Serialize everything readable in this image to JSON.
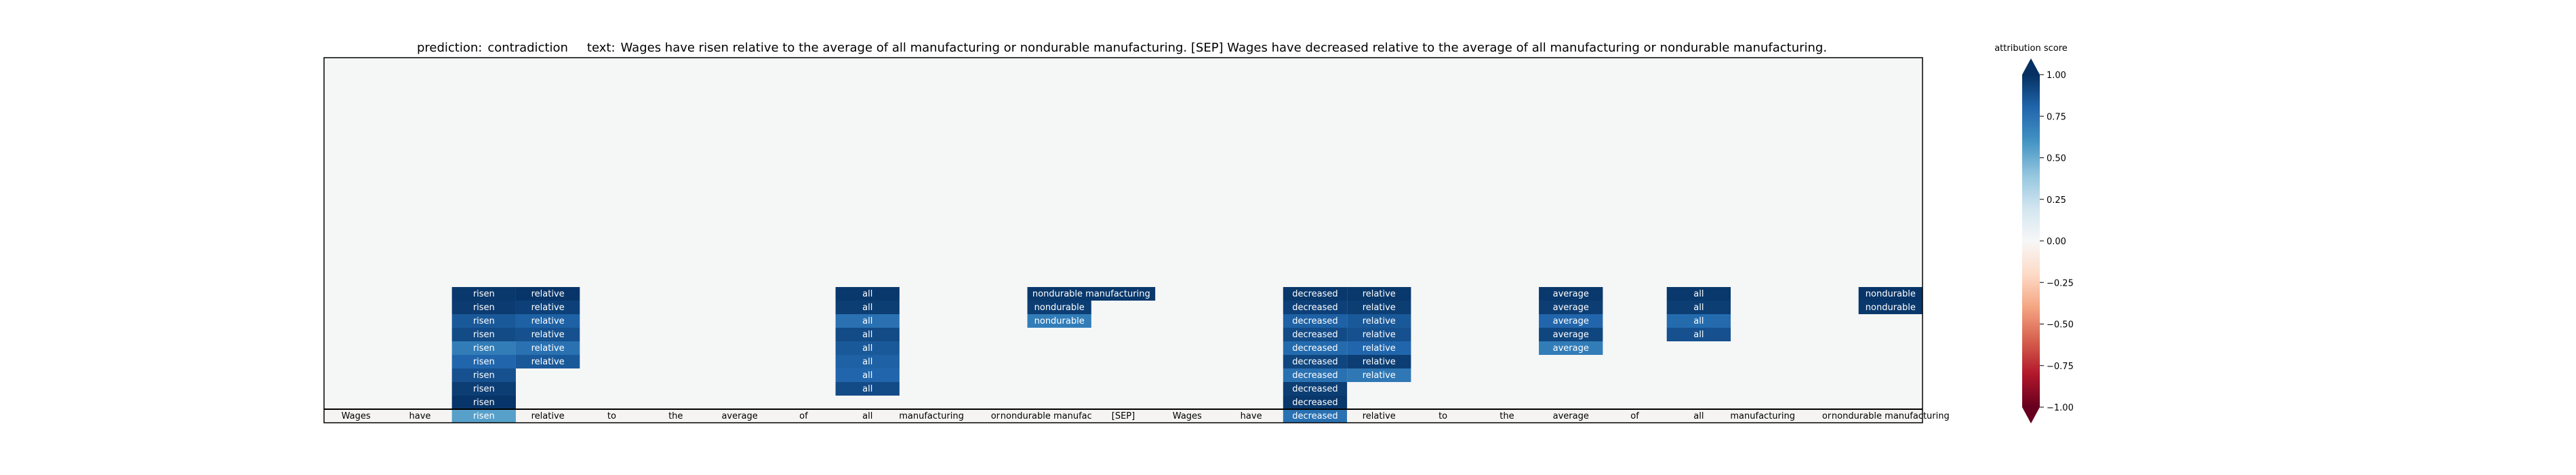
{
  "chart_data": {
    "type": "heatmap",
    "title": {
      "prediction_label": "prediction:",
      "prediction": "contradiction",
      "text_label": "text:",
      "text": "Wages have risen relative to the average of all manufacturing or nondurable manufacturing. [SEP] Wages have decreased relative to the average of all manufacturing or nondurable manufacturing."
    },
    "tokens": [
      "Wages",
      "have",
      "risen",
      "relative",
      "to",
      "the",
      "average",
      "of",
      "all",
      "manufacturing",
      "or",
      "nondurable manufacturing",
      "[SEP]",
      "Wages",
      "have",
      "decreased",
      "relative",
      "to",
      "the",
      "average",
      "of",
      "all",
      "manufacturing",
      "or",
      "nondurable manufacturing"
    ],
    "token_scores": [
      0,
      0,
      0.55,
      0,
      0,
      0,
      0,
      0,
      0,
      0,
      0,
      0,
      0,
      0,
      0,
      0.75,
      0,
      0,
      0,
      0,
      0,
      0,
      0,
      0,
      0
    ],
    "rows_from_bottom": [
      {
        "row": 1,
        "cells": [
          {
            "col": 2,
            "label": "risen",
            "score": 0.98
          },
          {
            "col": 15,
            "label": "decreased",
            "score": 0.97
          }
        ]
      },
      {
        "row": 2,
        "cells": [
          {
            "col": 2,
            "label": "risen",
            "score": 0.95
          },
          {
            "col": 8,
            "label": "all",
            "score": 0.9
          },
          {
            "col": 15,
            "label": "decreased",
            "score": 0.95
          }
        ]
      },
      {
        "row": 3,
        "cells": [
          {
            "col": 2,
            "label": "risen",
            "score": 0.88
          },
          {
            "col": 8,
            "label": "all",
            "score": 0.8
          },
          {
            "col": 15,
            "label": "decreased",
            "score": 0.75
          },
          {
            "col": 16,
            "label": "relative",
            "score": 0.72
          }
        ]
      },
      {
        "row": 4,
        "cells": [
          {
            "col": 2,
            "label": "risen",
            "score": 0.8
          },
          {
            "col": 3,
            "label": "relative",
            "score": 0.85
          },
          {
            "col": 8,
            "label": "all",
            "score": 0.82
          },
          {
            "col": 15,
            "label": "decreased",
            "score": 0.92
          },
          {
            "col": 16,
            "label": "relative",
            "score": 0.95
          }
        ]
      },
      {
        "row": 5,
        "cells": [
          {
            "col": 2,
            "label": "risen",
            "score": 0.7
          },
          {
            "col": 3,
            "label": "relative",
            "score": 0.75
          },
          {
            "col": 8,
            "label": "all",
            "score": 0.85
          },
          {
            "col": 15,
            "label": "decreased",
            "score": 0.78
          },
          {
            "col": 16,
            "label": "relative",
            "score": 0.8
          },
          {
            "col": 19,
            "label": "average",
            "score": 0.7
          }
        ]
      },
      {
        "row": 6,
        "cells": [
          {
            "col": 2,
            "label": "risen",
            "score": 0.9
          },
          {
            "col": 3,
            "label": "relative",
            "score": 0.88
          },
          {
            "col": 8,
            "label": "all",
            "score": 0.9
          },
          {
            "col": 15,
            "label": "decreased",
            "score": 0.9
          },
          {
            "col": 16,
            "label": "relative",
            "score": 0.88
          },
          {
            "col": 19,
            "label": "average",
            "score": 0.92
          },
          {
            "col": 21,
            "label": "all",
            "score": 0.88
          }
        ]
      },
      {
        "row": 7,
        "cells": [
          {
            "col": 2,
            "label": "risen",
            "score": 0.85
          },
          {
            "col": 3,
            "label": "relative",
            "score": 0.82
          },
          {
            "col": 8,
            "label": "all",
            "score": 0.75
          },
          {
            "col": 11,
            "label": "nondurable",
            "score": 0.7
          },
          {
            "col": 15,
            "label": "decreased",
            "score": 0.82
          },
          {
            "col": 16,
            "label": "relative",
            "score": 0.85
          },
          {
            "col": 19,
            "label": "average",
            "score": 0.8
          },
          {
            "col": 21,
            "label": "all",
            "score": 0.78
          }
        ]
      },
      {
        "row": 8,
        "cells": [
          {
            "col": 2,
            "label": "risen",
            "score": 0.96
          },
          {
            "col": 3,
            "label": "relative",
            "score": 0.94
          },
          {
            "col": 8,
            "label": "all",
            "score": 0.95
          },
          {
            "col": 11,
            "label": "nondurable",
            "score": 0.95
          },
          {
            "col": 15,
            "label": "decreased",
            "score": 0.94
          },
          {
            "col": 16,
            "label": "relative",
            "score": 0.95
          },
          {
            "col": 19,
            "label": "average",
            "score": 0.95
          },
          {
            "col": 21,
            "label": "all",
            "score": 0.95
          },
          {
            "col": 24,
            "label": "nondurable",
            "score": 0.97
          }
        ]
      },
      {
        "row": 9,
        "cells": [
          {
            "col": 2,
            "label": "risen",
            "score": 0.97
          },
          {
            "col": 3,
            "label": "relative",
            "score": 0.98
          },
          {
            "col": 8,
            "label": "all",
            "score": 0.97
          },
          {
            "col": 11,
            "label": "nondurable manufacturing",
            "score": 0.97,
            "span": 2
          },
          {
            "col": 15,
            "label": "decreased",
            "score": 0.97
          },
          {
            "col": 16,
            "label": "relative",
            "score": 0.97
          },
          {
            "col": 19,
            "label": "average",
            "score": 0.97
          },
          {
            "col": 21,
            "label": "all",
            "score": 0.97
          },
          {
            "col": 24,
            "label": "nondurable",
            "score": 0.98
          }
        ]
      }
    ],
    "colorbar": {
      "label": "attribution score",
      "vmin": -1,
      "vmax": 1,
      "ticks": [
        1.0,
        0.75,
        0.5,
        0.25,
        0.0,
        -0.25,
        -0.5,
        -0.75,
        -1.0
      ],
      "tick_labels": [
        "1.00",
        "0.75",
        "0.50",
        "0.25",
        "0.00",
        "−0.25",
        "−0.50",
        "−0.75",
        "−1.00"
      ],
      "colormap": "RdBu"
    },
    "colors": {
      "background": "#f5f6f6",
      "negative": "#67001f",
      "neutral": "#f7f7f7",
      "positive": "#053061"
    }
  }
}
